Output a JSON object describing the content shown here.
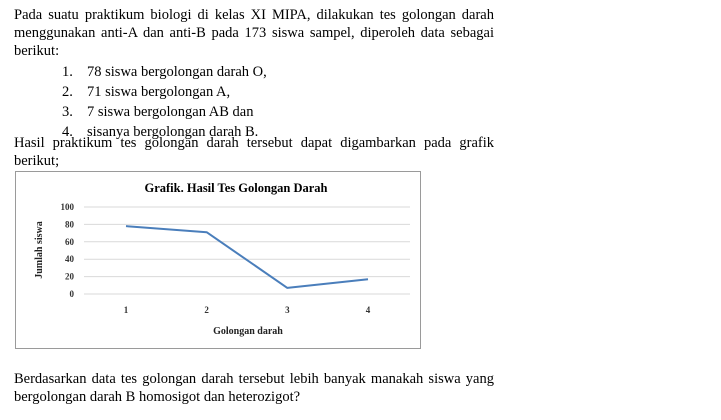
{
  "intro": "Pada suatu praktikum biologi di kelas XI MIPA, dilakukan tes golongan darah menggunakan anti-A dan anti-B pada 173 siswa sampel, diperoleh data sebagai berikut:",
  "list": [
    {
      "num": "1.",
      "text": "78 siswa bergolongan darah O,"
    },
    {
      "num": "2.",
      "text": "71 siswa bergolongan A,"
    },
    {
      "num": "3.",
      "text": "7 siswa bergolongan AB dan"
    },
    {
      "num": "4.",
      "text": "sisanya bergolongan darah B."
    }
  ],
  "hasil": "Hasil praktikum tes golongan darah tersebut dapat digambarkan pada grafik berikut;",
  "question": "Berdasarkan data tes golongan darah tersebut lebih banyak manakah siswa yang bergolongan darah B homosigot dan heterozigot?",
  "chart_data": {
    "type": "line",
    "title": "Grafik. Hasil Tes Golongan Darah",
    "xlabel": "Golongan darah",
    "ylabel": "Jumlah siswa",
    "x": [
      "1",
      "2",
      "3",
      "4"
    ],
    "yticks": [
      "0",
      "20",
      "40",
      "60",
      "80",
      "100"
    ],
    "ylim": [
      0,
      100
    ],
    "grid": true,
    "series": [
      {
        "values": [
          78,
          71,
          7,
          17
        ],
        "color": "#4a7ebb"
      }
    ]
  }
}
